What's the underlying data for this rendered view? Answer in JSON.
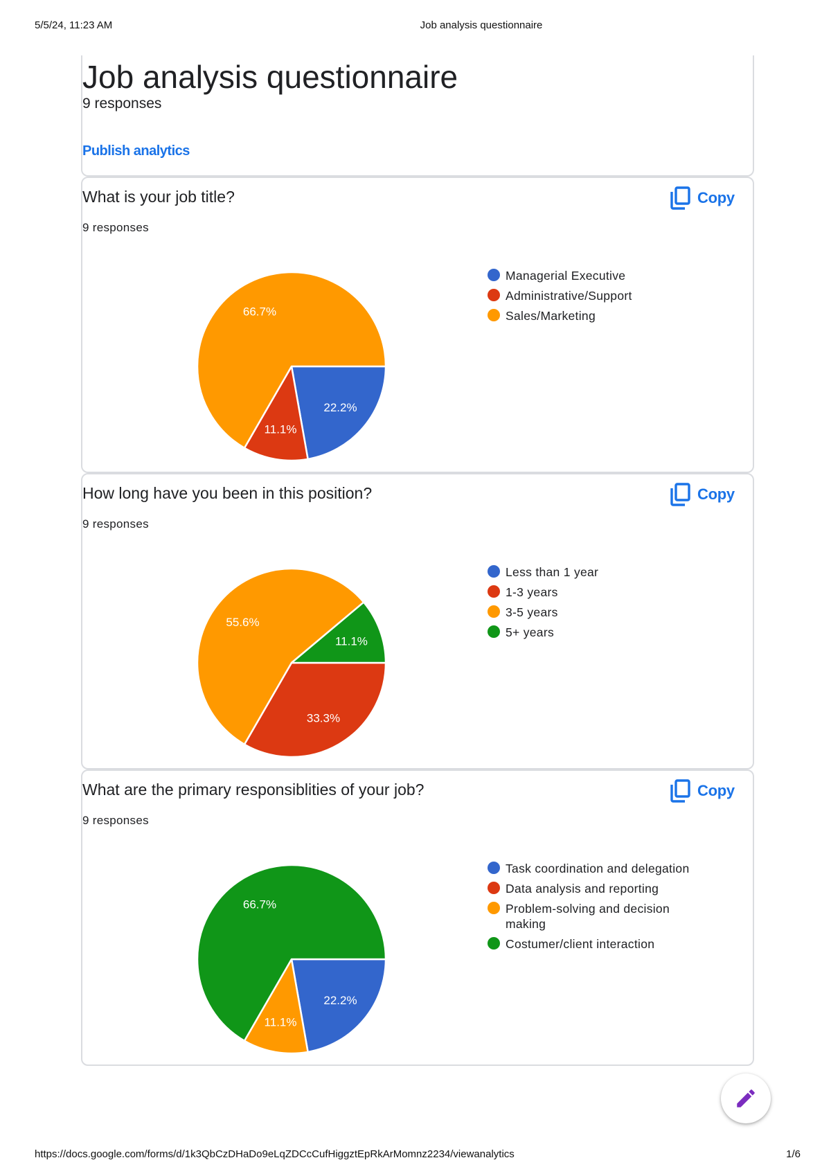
{
  "print_header": {
    "datetime": "5/5/24, 11:23 AM",
    "doc_title": "Job analysis questionnaire"
  },
  "print_footer": {
    "url": "https://docs.google.com/forms/d/1k3QbCzDHaDo9eLqZDCcCufHiggztEpRkArMomnz2234/viewanalytics",
    "page": "1/6"
  },
  "form": {
    "title": "Job analysis questionnaire",
    "responses": "9 responses",
    "publish_label": "Publish analytics"
  },
  "copy_label": "Copy",
  "colors": {
    "blue": "#3366cc",
    "red": "#dc3912",
    "orange": "#ff9900",
    "green": "#109618",
    "link": "#1a73e8"
  },
  "questions": [
    {
      "title": "What is your job title?",
      "responses": "9 responses"
    },
    {
      "title": "How long have you been in this position?",
      "responses": "9 responses"
    },
    {
      "title": "What are the primary responsiblities of your job?",
      "responses": "9 responses"
    }
  ],
  "chart_data": [
    {
      "type": "pie",
      "title": "What is your job title?",
      "categories": [
        "Managerial Executive",
        "Administrative/Support",
        "Sales/Marketing"
      ],
      "values": [
        2,
        1,
        6
      ],
      "percent_labels": [
        "22.2%",
        "11.1%",
        "66.7%"
      ],
      "colors": [
        "#3366cc",
        "#dc3912",
        "#ff9900"
      ],
      "legend": "right"
    },
    {
      "type": "pie",
      "title": "How long have you been in this position?",
      "categories": [
        "Less than 1 year",
        "1-3 years",
        "3-5 years",
        "5+ years"
      ],
      "values": [
        0,
        3,
        5,
        1
      ],
      "percent_labels": [
        "",
        "33.3%",
        "55.6%",
        "11.1%"
      ],
      "colors": [
        "#3366cc",
        "#dc3912",
        "#ff9900",
        "#109618"
      ],
      "legend": "right"
    },
    {
      "type": "pie",
      "title": "What are the primary responsiblities of your job?",
      "categories": [
        "Task coordination and delegation",
        "Data analysis and reporting",
        "Problem-solving and decision making",
        "Costumer/client interaction"
      ],
      "values": [
        2,
        0,
        1,
        6
      ],
      "percent_labels": [
        "22.2%",
        "",
        "11.1%",
        "66.7%"
      ],
      "colors": [
        "#3366cc",
        "#dc3912",
        "#ff9900",
        "#109618"
      ],
      "legend": "right"
    }
  ]
}
